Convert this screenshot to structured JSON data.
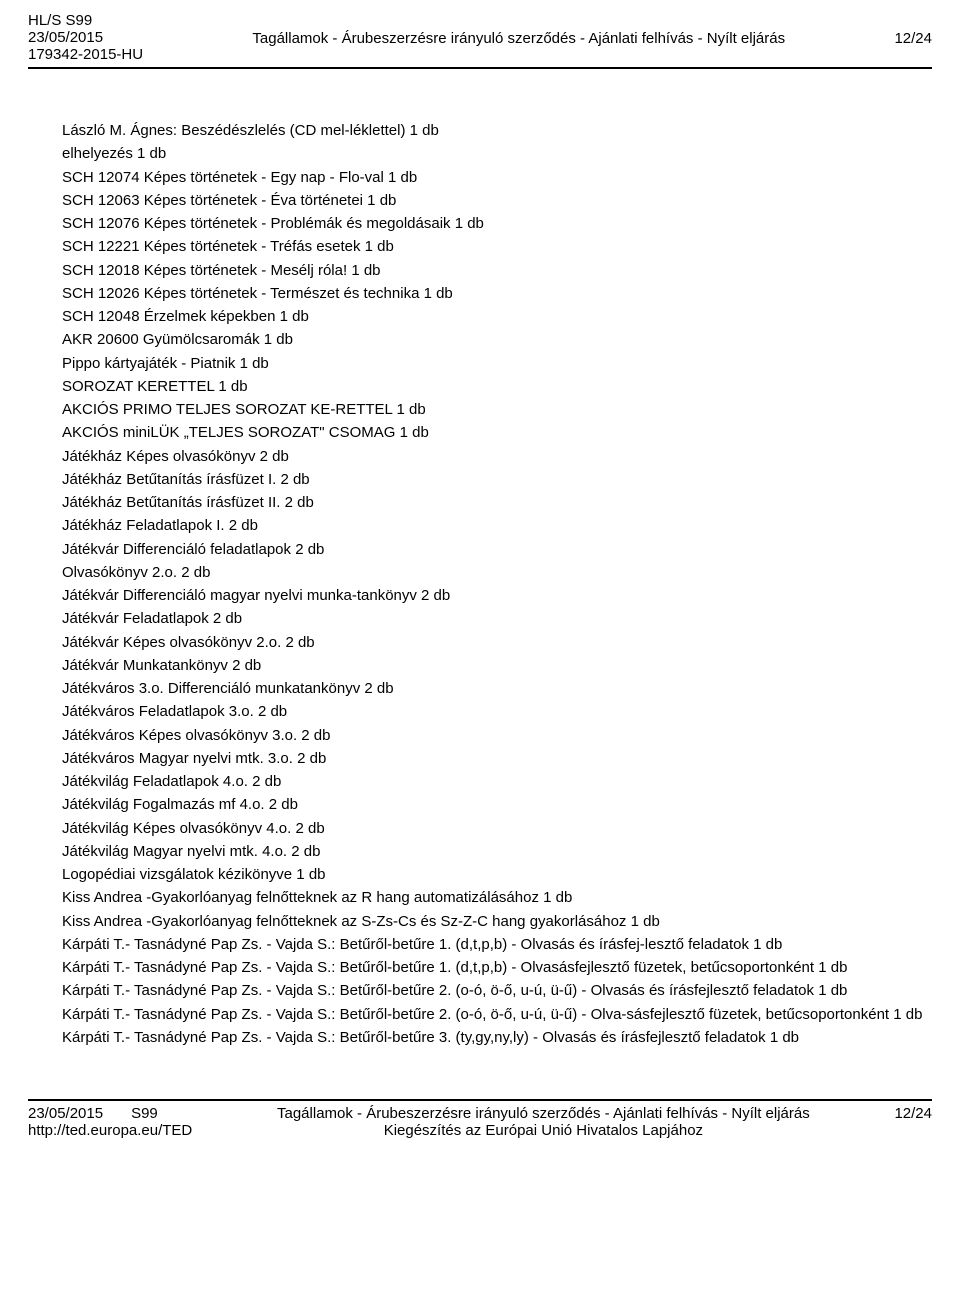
{
  "header": {
    "ref1": "HL/S S99",
    "date": "23/05/2015",
    "ref2": "179342-2015-HU",
    "title": "Tagállamok - Árubeszerzésre irányuló szerződés - Ajánlati felhívás - Nyílt eljárás",
    "page": "12/24"
  },
  "content": {
    "lines": [
      "László M. Ágnes: Beszédészlelés (CD mel-léklettel) 1 db",
      "elhelyezés 1 db",
      "SCH 12074 Képes történetek - Egy nap - Flo-val 1 db",
      "SCH 12063 Képes történetek - Éva történetei 1 db",
      "SCH 12076 Képes történetek - Problémák és megoldásaik 1 db",
      "SCH 12221 Képes történetek - Tréfás esetek 1 db",
      "SCH 12018 Képes történetek - Mesélj róla! 1 db",
      "SCH 12026 Képes történetek - Természet és technika 1 db",
      "SCH 12048 Érzelmek képekben 1 db",
      "AKR 20600 Gyümölcsaromák 1 db",
      "Pippo kártyajáték - Piatnik 1 db",
      "SOROZAT KERETTEL 1 db",
      "AKCIÓS PRIMO TELJES SOROZAT KE-RETTEL 1 db",
      "AKCIÓS miniLÜK „TELJES SOROZAT\" CSOMAG 1 db",
      "Játékház Képes olvasókönyv 2 db",
      "Játékház Betűtanítás írásfüzet I. 2 db",
      "Játékház Betűtanítás írásfüzet II. 2 db",
      "Játékház Feladatlapok I. 2 db",
      "Játékvár Differenciáló feladatlapok 2 db",
      "Olvasókönyv 2.o. 2 db",
      "Játékvár Differenciáló magyar nyelvi munka-tankönyv 2 db",
      "Játékvár Feladatlapok 2 db",
      "Játékvár Képes olvasókönyv 2.o. 2 db",
      "Játékvár Munkatankönyv 2 db",
      "Játékváros 3.o. Differenciáló munkatankönyv 2 db",
      "Játékváros Feladatlapok 3.o. 2 db",
      "Játékváros Képes olvasókönyv 3.o. 2 db",
      "Játékváros Magyar nyelvi mtk. 3.o. 2 db",
      "Játékvilág Feladatlapok 4.o. 2 db",
      "Játékvilág Fogalmazás mf 4.o. 2 db",
      "Játékvilág Képes olvasókönyv 4.o. 2 db",
      "Játékvilág Magyar nyelvi mtk. 4.o. 2 db",
      "Logopédiai vizsgálatok kézikönyve 1 db",
      "Kiss Andrea -Gyakorlóanyag felnőtteknek az R hang automatizálásához 1 db",
      "Kiss Andrea -Gyakorlóanyag felnőtteknek az S-Zs-Cs és Sz-Z-C hang gyakorlásához 1 db",
      "Kárpáti T.- Tasnádyné Pap Zs. - Vajda S.: Betűről-betűre 1. (d,t,p,b) - Olvasás és írásfej-lesztő feladatok 1 db",
      "Kárpáti T.- Tasnádyné Pap Zs. - Vajda S.: Betűről-betűre 1. (d,t,p,b) - Olvasásfejlesztő füzetek, betűcsoportonként 1 db",
      "Kárpáti T.- Tasnádyné Pap Zs. - Vajda S.: Betűről-betűre 2. (o-ó, ö-ő, u-ú, ü-ű) - Olvasás és írásfejlesztő feladatok 1 db",
      "Kárpáti T.- Tasnádyné Pap Zs. - Vajda S.: Betűről-betűre 2. (o-ó, ö-ő, u-ú, ü-ű) - Olva-sásfejlesztő füzetek, betűcsoportonként 1 db",
      "Kárpáti T.- Tasnádyné Pap Zs. - Vajda S.: Betűről-betűre 3. (ty,gy,ny,ly) - Olvasás és írásfejlesztő feladatok 1 db"
    ]
  },
  "footer": {
    "date": "23/05/2015",
    "ref": "S99",
    "url": "http://ted.europa.eu/TED",
    "title_line1": "Tagállamok - Árubeszerzésre irányuló szerződés - Ajánlati felhívás - Nyílt eljárás",
    "title_line2": "Kiegészítés az Európai Unió Hivatalos Lapjához",
    "page": "12/24"
  }
}
